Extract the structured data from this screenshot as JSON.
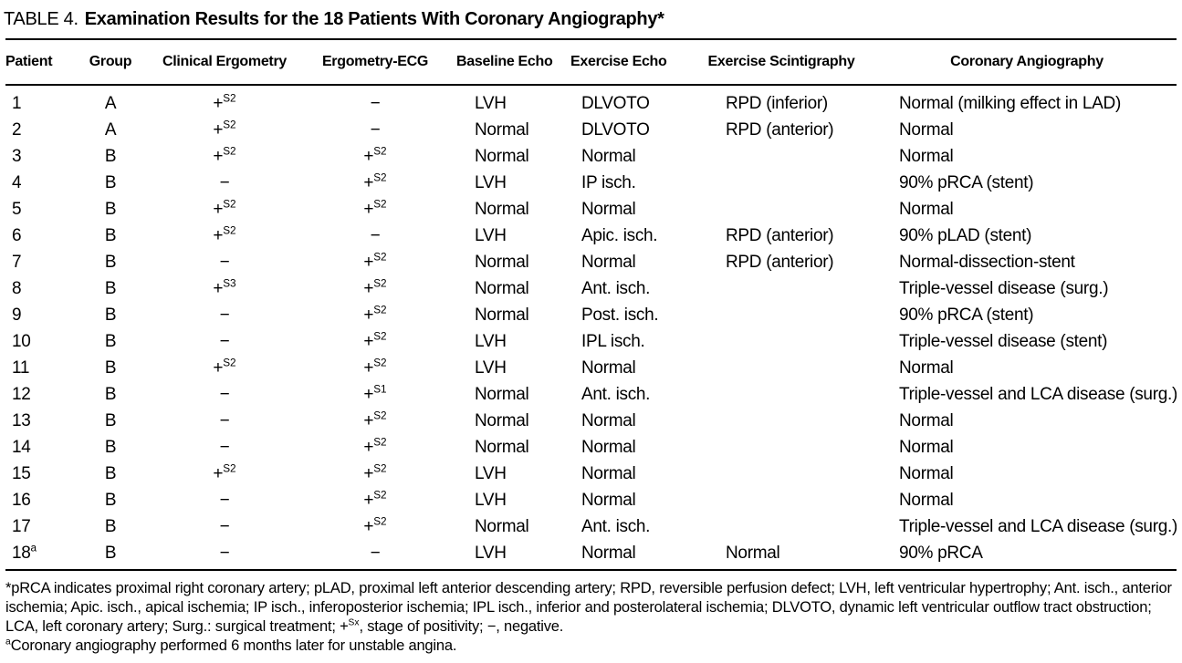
{
  "title": {
    "label": "TABLE 4.",
    "text": "Examination Results for the 18 Patients With Coronary Angiography*"
  },
  "table": {
    "columns": [
      "Patient",
      "Group",
      "Clinical Ergometry",
      "Ergometry-ECG",
      "Baseline Echo",
      "Exercise Echo",
      "Exercise Scintigraphy",
      "Coronary Angiography"
    ],
    "rows": [
      [
        "1",
        "A",
        "+^{S2}",
        "−",
        "LVH",
        "DLVOTO",
        "RPD (inferior)",
        "Normal (milking effect in LAD)"
      ],
      [
        "2",
        "A",
        "+^{S2}",
        "−",
        "Normal",
        "DLVOTO",
        "RPD (anterior)",
        "Normal"
      ],
      [
        "3",
        "B",
        "+^{S2}",
        "+^{S2}",
        "Normal",
        "Normal",
        "",
        "Normal"
      ],
      [
        "4",
        "B",
        "−",
        "+^{S2}",
        "LVH",
        "IP isch.",
        "",
        "90% pRCA (stent)"
      ],
      [
        "5",
        "B",
        "+^{S2}",
        "+^{S2}",
        "Normal",
        "Normal",
        "",
        "Normal"
      ],
      [
        "6",
        "B",
        "+^{S2}",
        "−",
        "LVH",
        "Apic. isch.",
        "RPD (anterior)",
        "90% pLAD (stent)"
      ],
      [
        "7",
        "B",
        "−",
        "+^{S2}",
        "Normal",
        "Normal",
        "RPD (anterior)",
        "Normal-dissection-stent"
      ],
      [
        "8",
        "B",
        "+^{S3}",
        "+^{S2}",
        "Normal",
        "Ant. isch.",
        "",
        "Triple-vessel disease (surg.)"
      ],
      [
        "9",
        "B",
        "−",
        "+^{S2}",
        "Normal",
        "Post. isch.",
        "",
        "90% pRCA (stent)"
      ],
      [
        "10",
        "B",
        "−",
        "+^{S2}",
        "LVH",
        "IPL isch.",
        "",
        "Triple-vessel disease (stent)"
      ],
      [
        "11",
        "B",
        "+^{S2}",
        "+^{S2}",
        "LVH",
        "Normal",
        "",
        "Normal"
      ],
      [
        "12",
        "B",
        "−",
        "+^{S1}",
        "Normal",
        "Ant. isch.",
        "",
        "Triple-vessel and LCA disease (surg.)"
      ],
      [
        "13",
        "B",
        "−",
        "+^{S2}",
        "Normal",
        "Normal",
        "",
        "Normal"
      ],
      [
        "14",
        "B",
        "−",
        "+^{S2}",
        "Normal",
        "Normal",
        "",
        "Normal"
      ],
      [
        "15",
        "B",
        "+^{S2}",
        "+^{S2}",
        "LVH",
        "Normal",
        "",
        "Normal"
      ],
      [
        "16",
        "B",
        "−",
        "+^{S2}",
        "LVH",
        "Normal",
        "",
        "Normal"
      ],
      [
        "17",
        "B",
        "−",
        "+^{S2}",
        "Normal",
        "Ant. isch.",
        "",
        "Triple-vessel and LCA disease (surg.)"
      ],
      [
        "18^{a}",
        "B",
        "−",
        "−",
        "LVH",
        "Normal",
        "Normal",
        "90% pRCA"
      ]
    ]
  },
  "footnotes": [
    "*pRCA indicates proximal right coronary artery; pLAD, proximal left anterior descending artery; RPD, reversible perfusion defect; LVH, left ventricular hypertrophy; Ant. isch., anterior ischemia; Apic. isch., apical ischemia; IP isch., inferoposterior ischemia; IPL isch., inferior and posterolateral ischemia; DLVOTO, dynamic left ventricular outflow tract obstruction; LCA, left coronary artery; Surg.: surgical treatment; +^{Sx}, stage of positivity; −, negative.",
    "^{a}Coronary angiography performed 6 months later for unstable angina."
  ]
}
